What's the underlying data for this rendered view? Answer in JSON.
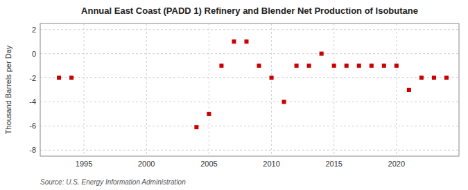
{
  "chart_data": {
    "type": "scatter",
    "title": "Annual East Coast (PADD 1) Refinery and Blender Net Production of Isobutane",
    "ylabel": "Thousand Barrels per Day",
    "annotations": [
      "Source: U.S. Energy Information Administration"
    ],
    "x": [
      1993,
      1994,
      2004,
      2005,
      2006,
      2007,
      2008,
      2009,
      2010,
      2011,
      2012,
      2013,
      2014,
      2015,
      2016,
      2017,
      2018,
      2019,
      2020,
      2021,
      2022,
      2023,
      2024
    ],
    "values": [
      -2.0,
      -2.0,
      -6.1,
      -5.0,
      -1.0,
      1.0,
      1.0,
      -1.0,
      -2.0,
      -4.0,
      -1.0,
      -1.0,
      0.0,
      -1.0,
      -1.0,
      -1.0,
      -1.0,
      -1.0,
      -1.0,
      -3.0,
      -2.0,
      -2.0,
      -2.0
    ],
    "xlim": [
      1991.5,
      2025
    ],
    "ylim": [
      -8.5,
      2.5
    ],
    "xticks": [
      1995,
      2000,
      2005,
      2010,
      2015,
      2020
    ],
    "yticks": [
      -8,
      -6,
      -4,
      -2,
      0,
      2
    ],
    "color": "#cc0000",
    "marker": "square",
    "grid": true
  }
}
